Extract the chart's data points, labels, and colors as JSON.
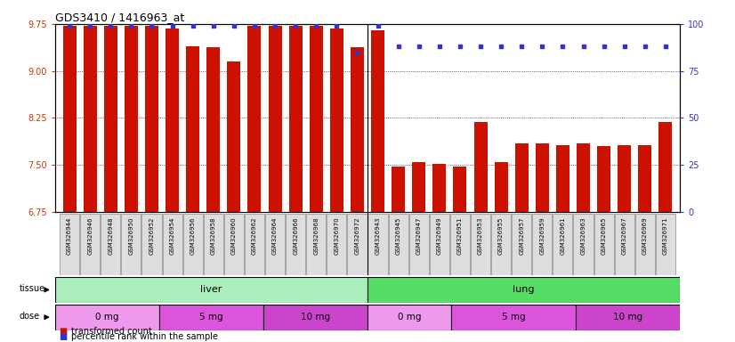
{
  "title": "GDS3410 / 1416963_at",
  "samples": [
    "GSM326944",
    "GSM326946",
    "GSM326948",
    "GSM326950",
    "GSM326952",
    "GSM326954",
    "GSM326956",
    "GSM326958",
    "GSM326960",
    "GSM326962",
    "GSM326964",
    "GSM326966",
    "GSM326968",
    "GSM326970",
    "GSM326972",
    "GSM326943",
    "GSM326945",
    "GSM326947",
    "GSM326949",
    "GSM326951",
    "GSM326953",
    "GSM326955",
    "GSM326957",
    "GSM326959",
    "GSM326961",
    "GSM326963",
    "GSM326965",
    "GSM326967",
    "GSM326969",
    "GSM326971"
  ],
  "transformed_count": [
    9.72,
    9.72,
    9.72,
    9.72,
    9.72,
    9.68,
    9.4,
    9.38,
    9.15,
    9.72,
    9.72,
    9.72,
    9.72,
    9.68,
    9.38,
    9.65,
    7.47,
    7.55,
    7.52,
    7.48,
    8.18,
    7.55,
    7.85,
    7.85,
    7.82,
    7.85,
    7.8,
    7.82,
    7.82,
    8.18
  ],
  "percentile_rank": [
    99,
    99,
    99,
    99,
    99,
    99,
    99,
    99,
    99,
    99,
    99,
    99,
    99,
    99,
    85,
    99,
    88,
    88,
    88,
    88,
    88,
    88,
    88,
    88,
    88,
    88,
    88,
    88,
    88,
    88
  ],
  "ylim_left": [
    6.75,
    9.75
  ],
  "ylim_right": [
    0,
    100
  ],
  "yticks_left": [
    6.75,
    7.5,
    8.25,
    9.0,
    9.75
  ],
  "yticks_right": [
    0,
    25,
    50,
    75,
    100
  ],
  "bar_color": "#cc1100",
  "dot_color": "#3333cc",
  "tissue_liver_label": "liver",
  "tissue_lung_label": "lung",
  "tissue_liver_color": "#aaeebb",
  "tissue_lung_color": "#55dd66",
  "dose_groups": [
    {
      "label": "0 mg",
      "start": 0,
      "end": 5,
      "color": "#ee99ee"
    },
    {
      "label": "5 mg",
      "start": 5,
      "end": 10,
      "color": "#dd55dd"
    },
    {
      "label": "10 mg",
      "start": 10,
      "end": 15,
      "color": "#cc44cc"
    },
    {
      "label": "0 mg",
      "start": 15,
      "end": 19,
      "color": "#ee99ee"
    },
    {
      "label": "5 mg",
      "start": 19,
      "end": 25,
      "color": "#dd55dd"
    },
    {
      "label": "10 mg",
      "start": 25,
      "end": 30,
      "color": "#cc44cc"
    }
  ],
  "legend_bar_label": "transformed count",
  "legend_dot_label": "percentile rank within the sample",
  "n_liver": 15,
  "n_total": 30
}
